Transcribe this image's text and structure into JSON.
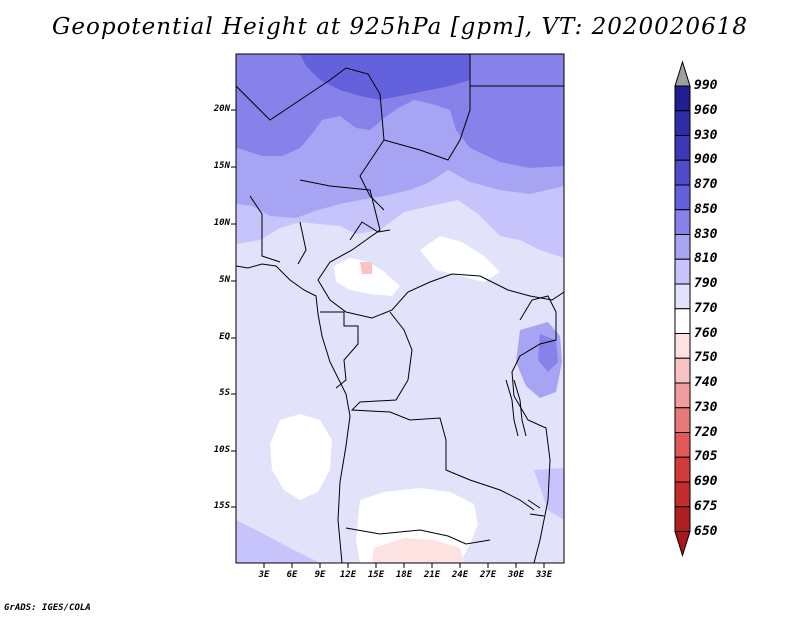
{
  "title": "Geopotential Height at 925hPa [gpm], VT: 2020020618",
  "credit": "GrADS: IGES/COLA",
  "map": {
    "region": "Central Africa",
    "lat_labels": [
      "20N",
      "15N",
      "10N",
      "5N",
      "EQ",
      "5S",
      "10S",
      "15S"
    ],
    "lon_labels": [
      "3E",
      "6E",
      "9E",
      "12E",
      "15E",
      "18E",
      "21E",
      "24E",
      "27E",
      "30E",
      "33E"
    ]
  },
  "colorbar": {
    "levels": [
      "990",
      "960",
      "930",
      "900",
      "870",
      "850",
      "830",
      "810",
      "790",
      "770",
      "760",
      "750",
      "740",
      "730",
      "720",
      "705",
      "690",
      "675",
      "650"
    ],
    "colors": [
      "#9f9f9f",
      "#201e92",
      "#2e2ca6",
      "#3c39b8",
      "#4f4ccc",
      "#6461dc",
      "#8682ea",
      "#a8a4f4",
      "#c6c4fa",
      "#e2e2fb",
      "#ffffff",
      "#fde2e2",
      "#f9c3c3",
      "#f29d9d",
      "#e87979",
      "#e05858",
      "#d13b3b",
      "#c42b2b",
      "#b01f1f",
      "#a81818"
    ]
  }
}
